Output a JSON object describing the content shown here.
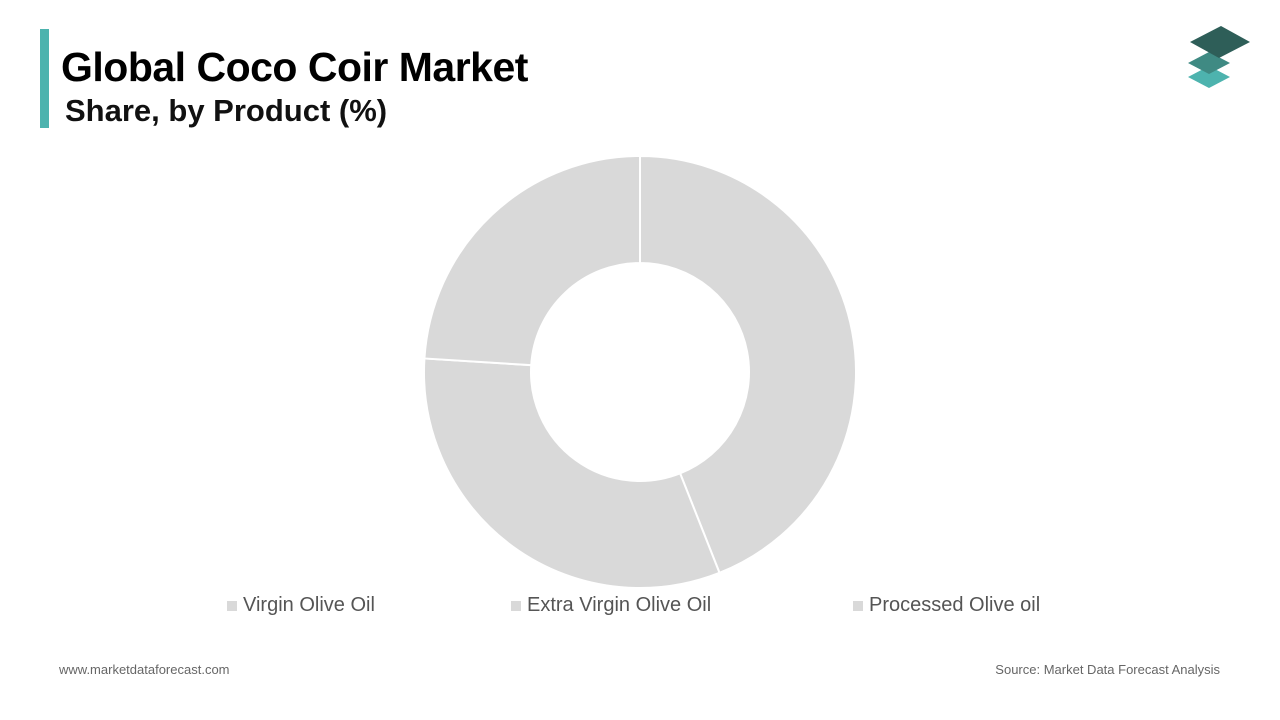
{
  "header": {
    "title": "Global Coco Coir Market",
    "subtitle": "Share, by Product (%)"
  },
  "logo": {
    "icon": "stacked-layers-icon",
    "colors": [
      "#2e5e58",
      "#3f8a83",
      "#4db3ae"
    ]
  },
  "chart_data": {
    "type": "pie",
    "subtype": "donut",
    "title": "",
    "categories": [
      "Virgin Olive Oil",
      "Extra Virgin Olive Oil",
      "Processed Olive oil"
    ],
    "values": [
      44,
      32,
      24
    ],
    "colors": [
      "#d9d9d9",
      "#d9d9d9",
      "#d9d9d9"
    ],
    "legend_position": "bottom",
    "start_angle_deg": 0,
    "direction": "clockwise"
  },
  "legend": {
    "items": [
      {
        "label": "Virgin Olive Oil",
        "color": "#d9d9d9"
      },
      {
        "label": "Extra Virgin Olive Oil",
        "color": "#d9d9d9"
      },
      {
        "label": "Processed Olive oil",
        "color": "#d9d9d9"
      }
    ]
  },
  "footer": {
    "website": "www.marketdataforecast.com",
    "source": "Source: Market Data Forecast Analysis"
  },
  "colors": {
    "accent": "#4db3ae",
    "slice_stroke": "#ffffff"
  }
}
